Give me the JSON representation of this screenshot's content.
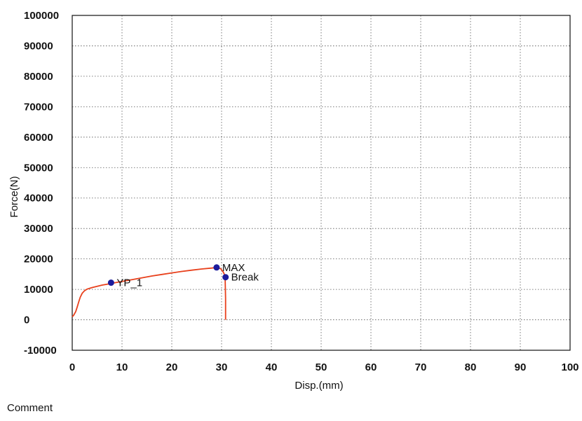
{
  "chart_data": {
    "type": "line",
    "xlabel": "Disp.(mm)",
    "ylabel": "Force(N)",
    "xlim": [
      0,
      100
    ],
    "ylim": [
      -10000,
      100000
    ],
    "x_ticks": [
      0,
      10,
      20,
      30,
      40,
      50,
      60,
      70,
      80,
      90,
      100
    ],
    "y_ticks": [
      -10000,
      0,
      10000,
      20000,
      30000,
      40000,
      50000,
      60000,
      70000,
      80000,
      90000,
      100000
    ],
    "grid": true,
    "line_color": "#e8401c",
    "marker_color": "#1c1c9c",
    "series": [
      {
        "x": [
          0,
          0.3,
          0.7,
          1.0,
          1.3,
          1.6,
          2.0,
          2.5,
          3.0,
          4.0,
          5.0,
          6.0,
          7.0,
          8.0,
          10.0,
          12.0,
          14.0,
          16.0,
          18.0,
          20.0,
          22.0,
          24.0,
          26.0,
          28.0,
          29.0,
          29.8,
          30.3,
          30.7,
          30.8,
          30.8
        ],
        "y": [
          1000,
          1500,
          2700,
          4200,
          5800,
          7400,
          8700,
          9600,
          10100,
          10600,
          11000,
          11400,
          11700,
          12000,
          12600,
          13200,
          13800,
          14400,
          14900,
          15400,
          15900,
          16300,
          16700,
          17000,
          17200,
          16800,
          15800,
          14500,
          7000,
          0
        ]
      }
    ],
    "markers": [
      {
        "label": "YP_1",
        "x": 7.8,
        "y": 12200
      },
      {
        "label": "MAX",
        "x": 29.0,
        "y": 17200
      },
      {
        "label": "Break",
        "x": 30.8,
        "y": 14000
      }
    ]
  },
  "comment_label": "Comment"
}
